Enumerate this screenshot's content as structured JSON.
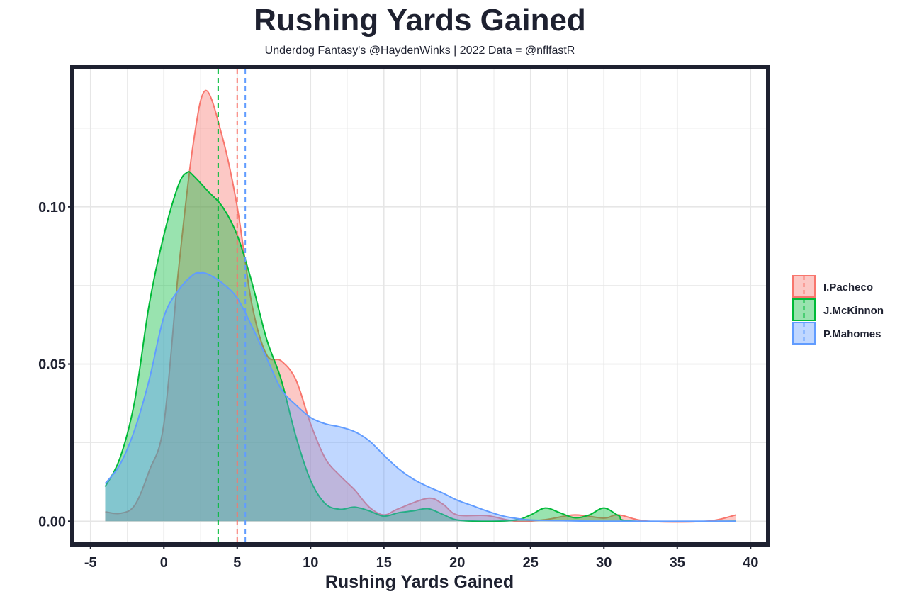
{
  "chart_data": {
    "type": "area",
    "title": "Rushing Yards Gained",
    "subtitle": "Underdog Fantasy's @HaydenWinks | 2022 Data = @nflfastR",
    "xlabel": "Rushing Yards Gained",
    "ylabel": "",
    "xlim": [
      -6.1,
      41.05
    ],
    "ylim": [
      -0.0067,
      0.1437
    ],
    "xticks": [
      -5,
      0,
      5,
      10,
      15,
      20,
      25,
      30,
      35,
      40
    ],
    "xtick_labels": [
      "-5",
      "0",
      "5",
      "10",
      "15",
      "20",
      "25",
      "30",
      "35",
      "40"
    ],
    "yticks": [
      0,
      0.05,
      0.1
    ],
    "ytick_labels": [
      "0.00",
      "0.05",
      "0.10"
    ],
    "grid": true,
    "legend_position": "right",
    "series": [
      {
        "name": "I.Pacheco",
        "color": "#F8766D",
        "mean": 5.0,
        "x": [
          -4,
          -3,
          -2,
          -1,
          0,
          1,
          2,
          2.85,
          4,
          5,
          6,
          7,
          8,
          9,
          10,
          11,
          12,
          13,
          14,
          15,
          16,
          18,
          19,
          20,
          22,
          24,
          26,
          28,
          30,
          31,
          33,
          37,
          39
        ],
        "y": [
          0.003,
          0.0025,
          0.005,
          0.016,
          0.031,
          0.08,
          0.12,
          0.137,
          0.122,
          0.1,
          0.069,
          0.053,
          0.051,
          0.045,
          0.031,
          0.02,
          0.0145,
          0.01,
          0.0045,
          0.002,
          0.004,
          0.0073,
          0.0055,
          0.002,
          0.0018,
          0,
          0.0005,
          0.002,
          0.001,
          0.002,
          0,
          0,
          0.002
        ]
      },
      {
        "name": "J.McKinnon",
        "color": "#00BA38",
        "mean": 3.7,
        "x": [
          -4,
          -3,
          -2,
          -1,
          0,
          1,
          1.6,
          2,
          3,
          4,
          5,
          6,
          7,
          8,
          9,
          10,
          11,
          12,
          13,
          14,
          15,
          16,
          17,
          18,
          19,
          20,
          22,
          24,
          25,
          26,
          27,
          28,
          29,
          30,
          31,
          32,
          39
        ],
        "y": [
          0.011,
          0.02,
          0.038,
          0.069,
          0.091,
          0.107,
          0.111,
          0.11,
          0.105,
          0.1,
          0.091,
          0.076,
          0.058,
          0.045,
          0.027,
          0.013,
          0.0056,
          0.0038,
          0.0045,
          0.0033,
          0.0016,
          0.0027,
          0.0033,
          0.004,
          0.0022,
          0.0004,
          0,
          0.0004,
          0.002,
          0.0042,
          0.0027,
          0.0011,
          0.002,
          0.0042,
          0.0018,
          0,
          0
        ]
      },
      {
        "name": "P.Mahomes",
        "color": "#619CFF",
        "mean": 5.55,
        "x": [
          -4,
          -3,
          -2,
          -1,
          0,
          1,
          2,
          2.5,
          3,
          4,
          5,
          6,
          7,
          8,
          9,
          10,
          11,
          12,
          13,
          14,
          15,
          16,
          17,
          18,
          19,
          20,
          21,
          22,
          23,
          24,
          25,
          27,
          30,
          39
        ],
        "y": [
          0.012,
          0.018,
          0.029,
          0.045,
          0.065,
          0.0735,
          0.0784,
          0.079,
          0.0786,
          0.0757,
          0.071,
          0.062,
          0.052,
          0.042,
          0.037,
          0.033,
          0.031,
          0.03,
          0.0285,
          0.0256,
          0.021,
          0.0167,
          0.0134,
          0.011,
          0.009,
          0.0067,
          0.005,
          0.0033,
          0.0018,
          0.0009,
          0.0004,
          0.0002,
          0,
          0
        ]
      }
    ]
  }
}
